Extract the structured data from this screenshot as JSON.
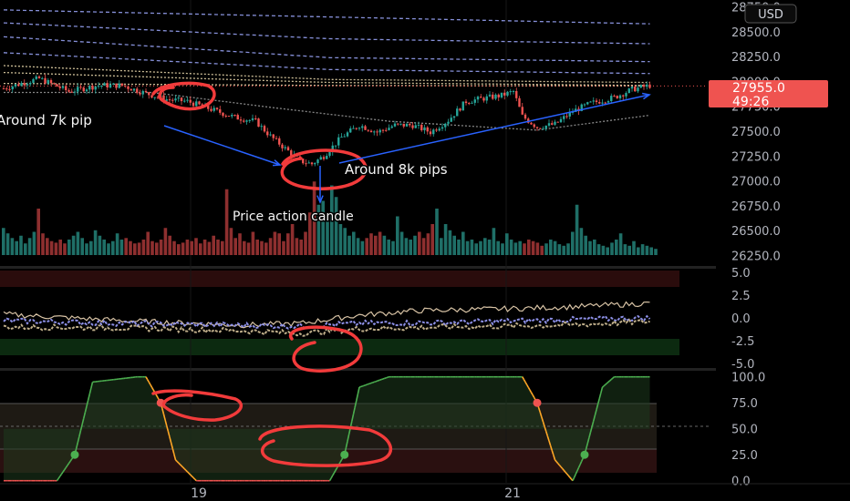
{
  "currency_label": "USD",
  "annotations": {
    "left_text": "Around 7k pip",
    "right_text": "Around 8k pips",
    "candle_text": "Price action candle"
  },
  "price_tag": {
    "price": "27955.0",
    "countdown": "49:26",
    "color": "#ef5350"
  },
  "x_axis_labels": [
    "19",
    "21"
  ],
  "colors": {
    "up": "#26a69a",
    "down": "#ef5350",
    "volume_up": "#1f6f67",
    "volume_down": "#8e2f2f",
    "axis_text": "#b2b5be",
    "annotation_ink": "#f23b3b",
    "arrow": "#2962ff",
    "band_blue": "#9ea9ff",
    "band_cream": "#f0deb0",
    "osc_green": "#4caf50",
    "osc_orange": "#ffa726",
    "osc_red": "#ef5350"
  },
  "chart_data": [
    {
      "type": "candlestick",
      "title": "",
      "y_ticks": [
        26250,
        26500,
        26750,
        27000,
        27250,
        27500,
        27750,
        28000,
        28250,
        28500,
        28750
      ],
      "ylim": [
        26180,
        28820
      ],
      "x_tick_labels": [
        "19",
        "21"
      ],
      "last_price": 27955.0,
      "close_path": [
        {
          "t": 0,
          "close": 27930
        },
        {
          "t": 12,
          "close": 28030
        },
        {
          "t": 22,
          "close": 27900
        },
        {
          "t": 32,
          "close": 27960
        },
        {
          "t": 40,
          "close": 27960
        },
        {
          "t": 48,
          "close": 27880
        },
        {
          "t": 55,
          "close": 27820
        },
        {
          "t": 62,
          "close": 27800
        },
        {
          "t": 68,
          "close": 27740
        },
        {
          "t": 74,
          "close": 27680
        },
        {
          "t": 78,
          "close": 27640
        },
        {
          "t": 85,
          "close": 27600
        },
        {
          "t": 90,
          "close": 27450
        },
        {
          "t": 96,
          "close": 27300
        },
        {
          "t": 100,
          "close": 27200
        },
        {
          "t": 104,
          "close": 27170
        },
        {
          "t": 108,
          "close": 27250
        },
        {
          "t": 114,
          "close": 27440
        },
        {
          "t": 120,
          "close": 27560
        },
        {
          "t": 126,
          "close": 27490
        },
        {
          "t": 132,
          "close": 27560
        },
        {
          "t": 138,
          "close": 27560
        },
        {
          "t": 144,
          "close": 27490
        },
        {
          "t": 150,
          "close": 27610
        },
        {
          "t": 156,
          "close": 27800
        },
        {
          "t": 162,
          "close": 27830
        },
        {
          "t": 168,
          "close": 27860
        },
        {
          "t": 172,
          "close": 27900
        },
        {
          "t": 175,
          "close": 27650
        },
        {
          "t": 180,
          "close": 27540
        },
        {
          "t": 186,
          "close": 27570
        },
        {
          "t": 192,
          "close": 27700
        },
        {
          "t": 198,
          "close": 27780
        },
        {
          "t": 206,
          "close": 27840
        },
        {
          "t": 212,
          "close": 27920
        },
        {
          "t": 218,
          "close": 27960
        }
      ],
      "band_lines": [
        {
          "name": "",
          "color": "#9ea9ff",
          "style": "dashed",
          "values": [
            [
              0,
              28720
            ],
            [
              218,
              28580
            ]
          ]
        },
        {
          "name": "",
          "color": "#9ea9ff",
          "style": "dashed",
          "values": [
            [
              0,
              28590
            ],
            [
              110,
              28430
            ],
            [
              218,
              28380
            ]
          ]
        },
        {
          "name": "",
          "color": "#9ea9ff",
          "style": "dashed",
          "values": [
            [
              0,
              28450
            ],
            [
              110,
              28240
            ],
            [
              218,
              28200
            ]
          ]
        },
        {
          "name": "",
          "color": "#9ea9ff",
          "style": "dashed",
          "values": [
            [
              0,
              28290
            ],
            [
              110,
              28120
            ],
            [
              218,
              28080
            ]
          ]
        },
        {
          "name": "",
          "color": "#f0deb0",
          "style": "dotted",
          "values": [
            [
              0,
              28160
            ],
            [
              110,
              28020
            ],
            [
              218,
              27990
            ]
          ]
        },
        {
          "name": "",
          "color": "#f0deb0",
          "style": "dotted",
          "values": [
            [
              0,
              28090
            ],
            [
              110,
              27990
            ],
            [
              218,
              27960
            ]
          ]
        },
        {
          "name": "",
          "color": "#f0deb0",
          "style": "dotted",
          "values": [
            [
              0,
              27980
            ],
            [
              110,
              27960
            ],
            [
              218,
              27955
            ]
          ]
        },
        {
          "name": "",
          "color": "#9e9e9e",
          "style": "dotted",
          "values": [
            [
              50,
              27890
            ],
            [
              90,
              27740
            ],
            [
              130,
              27600
            ],
            [
              180,
              27510
            ],
            [
              218,
              27660
            ]
          ]
        }
      ]
    },
    {
      "type": "bar",
      "title": "",
      "note": "volume histogram, relative heights",
      "values": [
        0.35,
        0.28,
        0.22,
        0.18,
        0.25,
        0.15,
        0.22,
        0.3,
        0.6,
        0.28,
        0.22,
        0.18,
        0.16,
        0.2,
        0.15,
        0.2,
        0.25,
        0.3,
        0.22,
        0.15,
        0.18,
        0.32,
        0.25,
        0.2,
        0.15,
        0.18,
        0.28,
        0.2,
        0.22,
        0.18,
        0.15,
        0.16,
        0.2,
        0.3,
        0.18,
        0.16,
        0.2,
        0.35,
        0.25,
        0.18,
        0.14,
        0.16,
        0.2,
        0.18,
        0.22,
        0.15,
        0.2,
        0.17,
        0.25,
        0.2,
        0.18,
        0.85,
        0.35,
        0.22,
        0.28,
        0.18,
        0.16,
        0.3,
        0.2,
        0.18,
        0.16,
        0.22,
        0.3,
        0.28,
        0.18,
        0.28,
        0.4,
        0.22,
        0.2,
        0.3,
        0.55,
        0.95,
        0.65,
        0.7,
        0.5,
        0.9,
        0.75,
        0.4,
        0.35,
        0.25,
        0.3,
        0.22,
        0.18,
        0.22,
        0.28,
        0.25,
        0.3,
        0.25,
        0.2,
        0.18,
        0.5,
        0.3,
        0.22,
        0.2,
        0.25,
        0.3,
        0.22,
        0.28,
        0.4,
        0.6,
        0.22,
        0.4,
        0.32,
        0.25,
        0.2,
        0.3,
        0.18,
        0.2,
        0.15,
        0.18,
        0.22,
        0.2,
        0.35,
        0.18,
        0.15,
        0.28,
        0.2,
        0.16,
        0.18,
        0.15,
        0.2,
        0.18,
        0.16,
        0.12,
        0.15,
        0.2,
        0.18,
        0.14,
        0.12,
        0.15,
        0.3,
        0.65,
        0.35,
        0.25,
        0.18,
        0.2,
        0.14,
        0.12,
        0.1,
        0.16,
        0.2,
        0.28,
        0.14,
        0.12,
        0.18,
        0.1,
        0.14,
        0.12,
        0.1,
        0.08
      ]
    },
    {
      "type": "line",
      "title": "",
      "y_ticks": [
        5.0,
        2.5,
        0.0,
        -2.5,
        -5.0
      ],
      "ylim": [
        -5.5,
        5.5
      ],
      "series": [
        {
          "name": "",
          "color": "#d8c3a5",
          "values": [
            [
              0,
              0.4
            ],
            [
              40,
              -0.3
            ],
            [
              80,
              -0.8
            ],
            [
              100,
              -0.6
            ],
            [
              120,
              0.3
            ],
            [
              140,
              0.8
            ],
            [
              170,
              1.0
            ],
            [
              190,
              1.2
            ],
            [
              218,
              1.6
            ]
          ]
        },
        {
          "name": "",
          "color": "#8c8fe6",
          "values": [
            [
              0,
              -0.3
            ],
            [
              40,
              -0.6
            ],
            [
              80,
              -0.8
            ],
            [
              100,
              -0.9
            ],
            [
              120,
              -0.6
            ],
            [
              150,
              -0.5
            ],
            [
              190,
              -0.2
            ],
            [
              218,
              0.0
            ]
          ]
        },
        {
          "name": "",
          "color": "#bfae8a",
          "values": [
            [
              0,
              -1.0
            ],
            [
              40,
              -1.1
            ],
            [
              80,
              -1.4
            ],
            [
              100,
              -1.7
            ],
            [
              120,
              -1.2
            ],
            [
              150,
              -1.0
            ],
            [
              190,
              -0.8
            ],
            [
              218,
              -0.4
            ]
          ]
        }
      ]
    },
    {
      "type": "line",
      "title": "",
      "y_ticks": [
        100.0,
        75.0,
        50.0,
        25.0,
        0.0
      ],
      "ylim": [
        -2,
        105
      ],
      "series": [
        {
          "name": "",
          "color": "#4caf50",
          "values": [
            [
              0,
              0
            ],
            [
              18,
              0
            ],
            [
              24,
              25
            ],
            [
              30,
              95
            ],
            [
              45,
              100
            ],
            [
              48,
              100
            ],
            [
              53,
              75
            ],
            [
              58,
              20
            ],
            [
              65,
              0
            ],
            [
              110,
              0
            ],
            [
              115,
              25
            ],
            [
              120,
              90
            ],
            [
              130,
              100
            ],
            [
              175,
              100
            ],
            [
              180,
              75
            ],
            [
              186,
              20
            ],
            [
              192,
              0
            ],
            [
              196,
              25
            ],
            [
              202,
              90
            ],
            [
              206,
              100
            ],
            [
              218,
              100
            ]
          ]
        }
      ],
      "markers": [
        [
          24,
          25
        ],
        [
          53,
          75
        ],
        [
          115,
          25
        ],
        [
          180,
          75
        ],
        [
          196,
          25
        ]
      ]
    }
  ]
}
